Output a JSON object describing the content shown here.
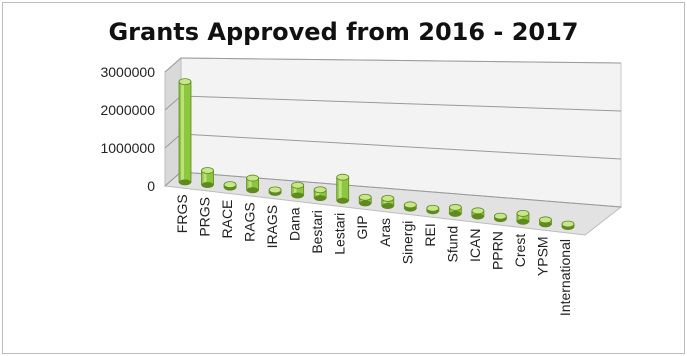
{
  "chart_data": {
    "type": "bar",
    "title": "Grants Approved from 2016 - 2017",
    "xlabel": "",
    "ylabel": "",
    "ylim": [
      0,
      3000000
    ],
    "yticks": [
      "3000000",
      "2000000",
      "1000000",
      "0"
    ],
    "ytick_values": [
      3000000,
      2000000,
      1000000,
      0
    ],
    "categories": [
      "FRGS",
      "PRGS",
      "RACE",
      "RAGS",
      "IRAGS",
      "Dana",
      "Bestari",
      "Lestari",
      "GIP",
      "Aras",
      "Sinergi",
      "REI",
      "Sfund",
      "ICAN",
      "PPRN",
      "Crest",
      "YPSM",
      "International"
    ],
    "values": [
      2650000,
      380000,
      30000,
      320000,
      30000,
      270000,
      220000,
      620000,
      160000,
      200000,
      100000,
      70000,
      170000,
      150000,
      20000,
      220000,
      120000,
      40000
    ],
    "grid": true,
    "legend": "none",
    "bar_color": "#8dc63f",
    "bar_dark": "#5f8a1f",
    "bar_light": "#c8e68a",
    "wall_color": "#f3f3f3",
    "floor_color": "#e2e2e2"
  }
}
